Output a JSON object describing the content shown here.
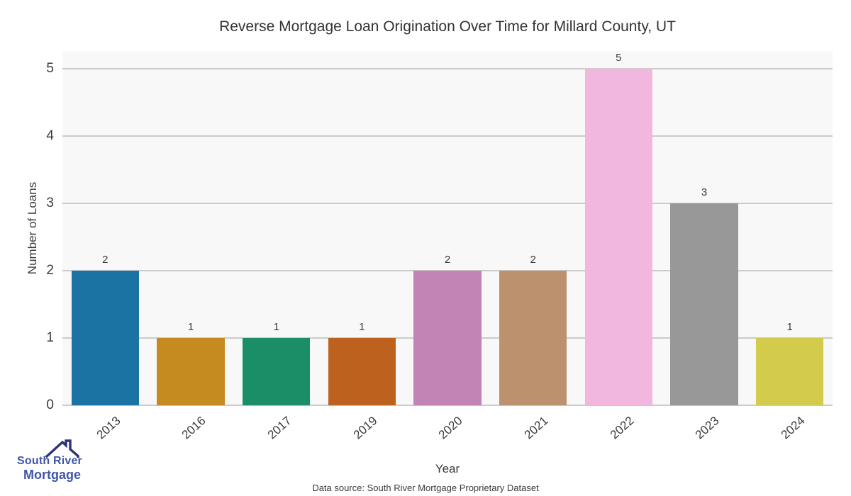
{
  "chart_data": {
    "type": "bar",
    "title": "Reverse Mortgage Loan Origination Over Time for Millard County, UT",
    "categories": [
      "2013",
      "2016",
      "2017",
      "2019",
      "2020",
      "2021",
      "2022",
      "2023",
      "2024"
    ],
    "values": [
      2,
      1,
      1,
      1,
      2,
      2,
      5,
      3,
      1
    ],
    "bar_colors": [
      "#1b73a3",
      "#c68b20",
      "#1b8e67",
      "#bd611e",
      "#c283b5",
      "#bc916e",
      "#f2b7de",
      "#989898",
      "#d3cb4b"
    ],
    "xlabel": "Year",
    "ylabel": "Number of Loans",
    "yticks": [
      0,
      1,
      2,
      3,
      4,
      5
    ],
    "ylim": [
      0,
      5.26
    ],
    "grid": "horizontal",
    "legend": "none",
    "plot_bg": "#f8f8f8",
    "gridline_color": "#cbcbcb"
  },
  "footer": {
    "data_source": "Data source: South River Mortgage Proprietary Dataset"
  },
  "logo": {
    "line1": "South River",
    "line2": "Mortgage",
    "text_color": "#3d56a8",
    "roof_color": "#2c3474",
    "roof_icon": "house-roof-with-chimney"
  }
}
